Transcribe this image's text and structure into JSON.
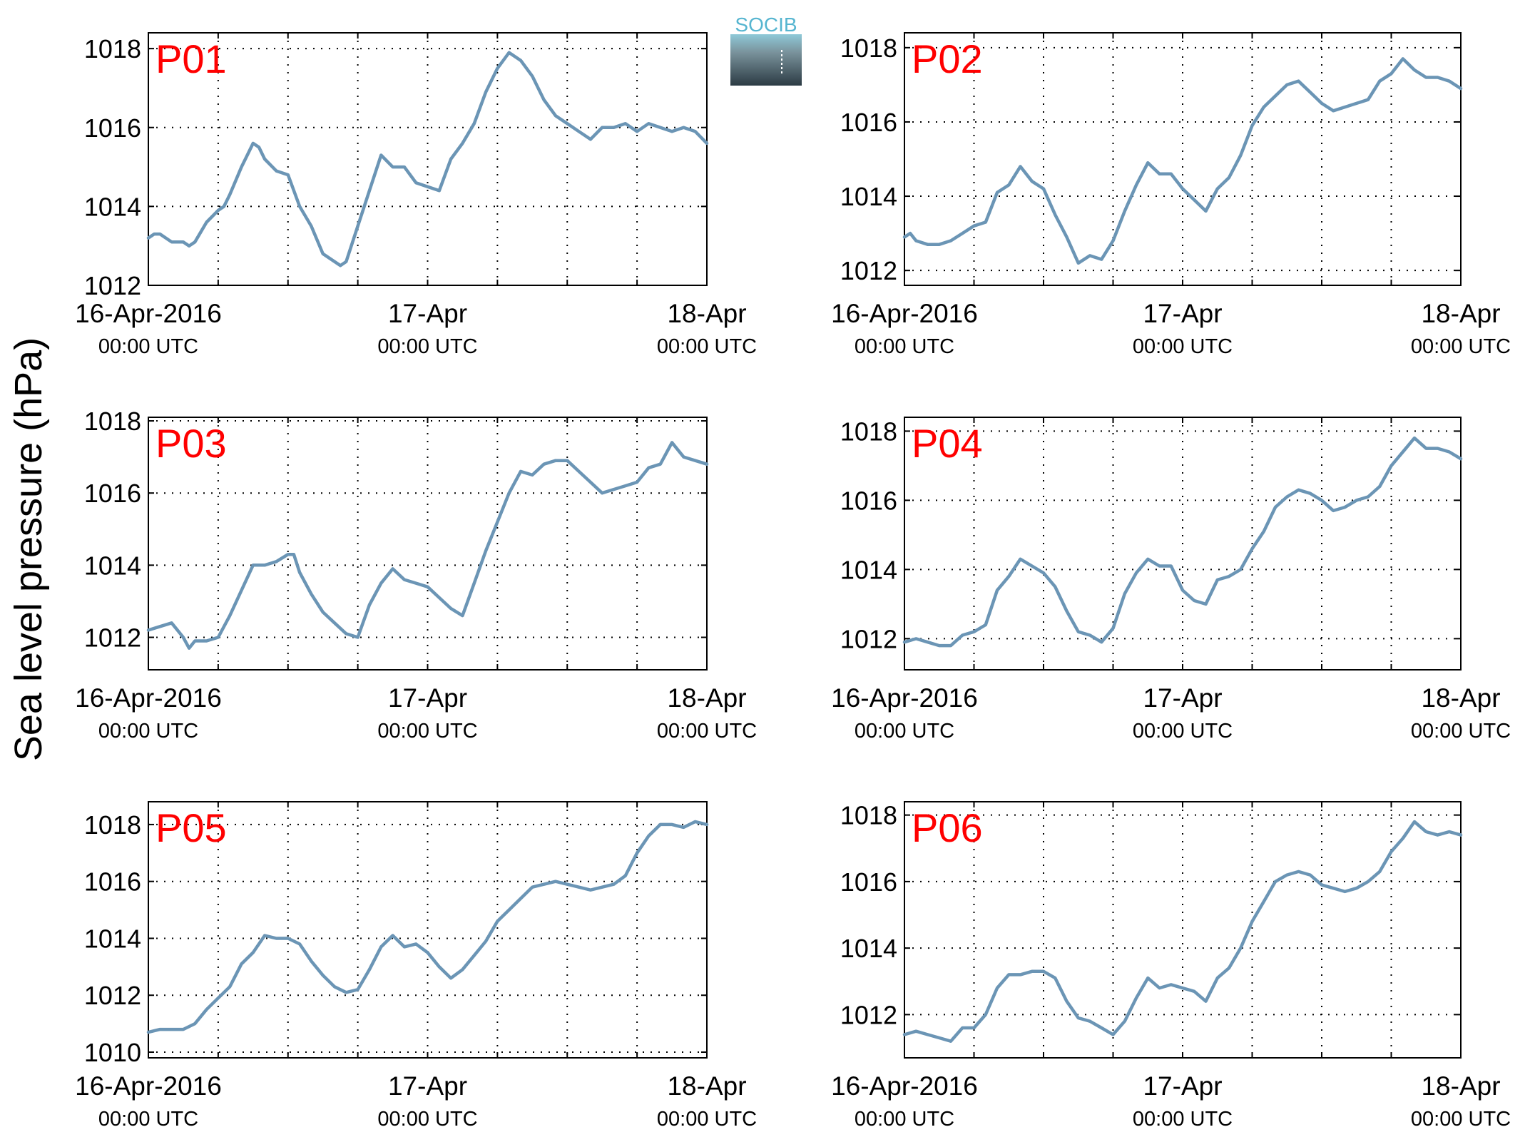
{
  "figure": {
    "ylabel": "Sea level pressure (hPa)",
    "logo_text": "SOCIB",
    "line_color": "#6b95b5",
    "label_color": "#ff0000",
    "grid_style": "dotted"
  },
  "x_ticks": [
    {
      "main": "16-Apr-2016",
      "sub": "00:00 UTC"
    },
    {
      "main": "17-Apr",
      "sub": "00:00 UTC"
    },
    {
      "main": "18-Apr",
      "sub": "00:00 UTC"
    }
  ],
  "chart_data": [
    {
      "type": "line",
      "title": "P01",
      "ylim": [
        1012,
        1018.4
      ],
      "yticks": [
        1012,
        1014,
        1016,
        1018
      ],
      "xlim": [
        0,
        48
      ],
      "xgrid_every_hours": 6,
      "grid": true,
      "points": [
        [
          0,
          1013.2
        ],
        [
          0.5,
          1013.3
        ],
        [
          1,
          1013.3
        ],
        [
          2,
          1013.1
        ],
        [
          3,
          1013.1
        ],
        [
          3.5,
          1013.0
        ],
        [
          4,
          1013.1
        ],
        [
          5,
          1013.6
        ],
        [
          6,
          1013.9
        ],
        [
          6.5,
          1014.0
        ],
        [
          7,
          1014.3
        ],
        [
          8,
          1015.0
        ],
        [
          8.5,
          1015.3
        ],
        [
          9,
          1015.6
        ],
        [
          9.5,
          1015.5
        ],
        [
          10,
          1015.2
        ],
        [
          11,
          1014.9
        ],
        [
          12,
          1014.8
        ],
        [
          13,
          1014.0
        ],
        [
          14,
          1013.5
        ],
        [
          15,
          1012.8
        ],
        [
          16,
          1012.6
        ],
        [
          16.5,
          1012.5
        ],
        [
          17,
          1012.6
        ],
        [
          18,
          1013.5
        ],
        [
          19,
          1014.4
        ],
        [
          20,
          1015.3
        ],
        [
          21,
          1015.0
        ],
        [
          22,
          1015.0
        ],
        [
          23,
          1014.6
        ],
        [
          24,
          1014.5
        ],
        [
          25,
          1014.4
        ],
        [
          26,
          1015.2
        ],
        [
          27,
          1015.6
        ],
        [
          28,
          1016.1
        ],
        [
          29,
          1016.9
        ],
        [
          30,
          1017.5
        ],
        [
          31,
          1017.9
        ],
        [
          32,
          1017.7
        ],
        [
          33,
          1017.3
        ],
        [
          34,
          1016.7
        ],
        [
          35,
          1016.3
        ],
        [
          36,
          1016.1
        ],
        [
          37,
          1015.9
        ],
        [
          38,
          1015.7
        ],
        [
          39,
          1016.0
        ],
        [
          40,
          1016.0
        ],
        [
          41,
          1016.1
        ],
        [
          42,
          1015.9
        ],
        [
          43,
          1016.1
        ],
        [
          44,
          1016.0
        ],
        [
          45,
          1015.9
        ],
        [
          46,
          1016.0
        ],
        [
          47,
          1015.9
        ],
        [
          48,
          1015.6
        ]
      ]
    },
    {
      "type": "line",
      "title": "P02",
      "ylim": [
        1011.6,
        1018.4
      ],
      "yticks": [
        1012,
        1014,
        1016,
        1018
      ],
      "xlim": [
        0,
        48
      ],
      "xgrid_every_hours": 6,
      "grid": true,
      "points": [
        [
          0,
          1012.9
        ],
        [
          0.5,
          1013.0
        ],
        [
          1,
          1012.8
        ],
        [
          2,
          1012.7
        ],
        [
          3,
          1012.7
        ],
        [
          4,
          1012.8
        ],
        [
          5,
          1013.0
        ],
        [
          6,
          1013.2
        ],
        [
          7,
          1013.3
        ],
        [
          8,
          1014.1
        ],
        [
          9,
          1014.3
        ],
        [
          10,
          1014.8
        ],
        [
          11,
          1014.4
        ],
        [
          12,
          1014.2
        ],
        [
          13,
          1013.5
        ],
        [
          14,
          1012.9
        ],
        [
          15,
          1012.2
        ],
        [
          16,
          1012.4
        ],
        [
          17,
          1012.3
        ],
        [
          18,
          1012.8
        ],
        [
          19,
          1013.6
        ],
        [
          20,
          1014.3
        ],
        [
          21,
          1014.9
        ],
        [
          22,
          1014.6
        ],
        [
          23,
          1014.6
        ],
        [
          24,
          1014.2
        ],
        [
          25,
          1013.9
        ],
        [
          26,
          1013.6
        ],
        [
          27,
          1014.2
        ],
        [
          28,
          1014.5
        ],
        [
          29,
          1015.1
        ],
        [
          30,
          1015.9
        ],
        [
          31,
          1016.4
        ],
        [
          32,
          1016.7
        ],
        [
          33,
          1017.0
        ],
        [
          34,
          1017.1
        ],
        [
          35,
          1016.8
        ],
        [
          36,
          1016.5
        ],
        [
          37,
          1016.3
        ],
        [
          38,
          1016.4
        ],
        [
          39,
          1016.5
        ],
        [
          40,
          1016.6
        ],
        [
          41,
          1017.1
        ],
        [
          42,
          1017.3
        ],
        [
          43,
          1017.7
        ],
        [
          44,
          1017.4
        ],
        [
          45,
          1017.2
        ],
        [
          46,
          1017.2
        ],
        [
          47,
          1017.1
        ],
        [
          48,
          1016.9
        ]
      ]
    },
    {
      "type": "line",
      "title": "P03",
      "ylim": [
        1011.1,
        1018.1
      ],
      "yticks": [
        1012,
        1014,
        1016,
        1018
      ],
      "xlim": [
        0,
        48
      ],
      "xgrid_every_hours": 6,
      "grid": true,
      "points": [
        [
          0,
          1012.2
        ],
        [
          1,
          1012.3
        ],
        [
          2,
          1012.4
        ],
        [
          3,
          1012.0
        ],
        [
          3.5,
          1011.7
        ],
        [
          4,
          1011.9
        ],
        [
          5,
          1011.9
        ],
        [
          6,
          1012.0
        ],
        [
          7,
          1012.6
        ],
        [
          8,
          1013.3
        ],
        [
          9,
          1014.0
        ],
        [
          10,
          1014.0
        ],
        [
          11,
          1014.1
        ],
        [
          12,
          1014.3
        ],
        [
          12.5,
          1014.3
        ],
        [
          13,
          1013.8
        ],
        [
          14,
          1013.2
        ],
        [
          15,
          1012.7
        ],
        [
          16,
          1012.4
        ],
        [
          17,
          1012.1
        ],
        [
          18,
          1012.0
        ],
        [
          19,
          1012.9
        ],
        [
          20,
          1013.5
        ],
        [
          21,
          1013.9
        ],
        [
          22,
          1013.6
        ],
        [
          23,
          1013.5
        ],
        [
          24,
          1013.4
        ],
        [
          25,
          1013.1
        ],
        [
          26,
          1012.8
        ],
        [
          27,
          1012.6
        ],
        [
          28,
          1013.5
        ],
        [
          29,
          1014.4
        ],
        [
          30,
          1015.2
        ],
        [
          31,
          1016.0
        ],
        [
          32,
          1016.6
        ],
        [
          33,
          1016.5
        ],
        [
          34,
          1016.8
        ],
        [
          35,
          1016.9
        ],
        [
          36,
          1016.9
        ],
        [
          37,
          1016.6
        ],
        [
          38,
          1016.3
        ],
        [
          39,
          1016.0
        ],
        [
          40,
          1016.1
        ],
        [
          41,
          1016.2
        ],
        [
          42,
          1016.3
        ],
        [
          43,
          1016.7
        ],
        [
          44,
          1016.8
        ],
        [
          45,
          1017.4
        ],
        [
          46,
          1017.0
        ],
        [
          47,
          1016.9
        ],
        [
          48,
          1016.8
        ]
      ]
    },
    {
      "type": "line",
      "title": "P04",
      "ylim": [
        1011.1,
        1018.4
      ],
      "yticks": [
        1012,
        1014,
        1016,
        1018
      ],
      "xlim": [
        0,
        48
      ],
      "xgrid_every_hours": 6,
      "grid": true,
      "points": [
        [
          0,
          1011.9
        ],
        [
          1,
          1012.0
        ],
        [
          2,
          1011.9
        ],
        [
          3,
          1011.8
        ],
        [
          4,
          1011.8
        ],
        [
          5,
          1012.1
        ],
        [
          6,
          1012.2
        ],
        [
          7,
          1012.4
        ],
        [
          8,
          1013.4
        ],
        [
          9,
          1013.8
        ],
        [
          10,
          1014.3
        ],
        [
          11,
          1014.1
        ],
        [
          12,
          1013.9
        ],
        [
          13,
          1013.5
        ],
        [
          14,
          1012.8
        ],
        [
          15,
          1012.2
        ],
        [
          16,
          1012.1
        ],
        [
          17,
          1011.9
        ],
        [
          18,
          1012.3
        ],
        [
          19,
          1013.3
        ],
        [
          20,
          1013.9
        ],
        [
          21,
          1014.3
        ],
        [
          22,
          1014.1
        ],
        [
          23,
          1014.1
        ],
        [
          24,
          1013.4
        ],
        [
          25,
          1013.1
        ],
        [
          26,
          1013.0
        ],
        [
          27,
          1013.7
        ],
        [
          28,
          1013.8
        ],
        [
          29,
          1014.0
        ],
        [
          30,
          1014.6
        ],
        [
          31,
          1015.1
        ],
        [
          32,
          1015.8
        ],
        [
          33,
          1016.1
        ],
        [
          34,
          1016.3
        ],
        [
          35,
          1016.2
        ],
        [
          36,
          1016.0
        ],
        [
          37,
          1015.7
        ],
        [
          38,
          1015.8
        ],
        [
          39,
          1016.0
        ],
        [
          40,
          1016.1
        ],
        [
          41,
          1016.4
        ],
        [
          42,
          1017.0
        ],
        [
          43,
          1017.4
        ],
        [
          44,
          1017.8
        ],
        [
          45,
          1017.5
        ],
        [
          46,
          1017.5
        ],
        [
          47,
          1017.4
        ],
        [
          48,
          1017.2
        ]
      ]
    },
    {
      "type": "line",
      "title": "P05",
      "ylim": [
        1009.8,
        1018.8
      ],
      "yticks": [
        1010,
        1012,
        1014,
        1016,
        1018
      ],
      "xlim": [
        0,
        48
      ],
      "xgrid_every_hours": 6,
      "grid": true,
      "points": [
        [
          0,
          1010.7
        ],
        [
          1,
          1010.8
        ],
        [
          2,
          1010.8
        ],
        [
          3,
          1010.8
        ],
        [
          4,
          1011.0
        ],
        [
          5,
          1011.5
        ],
        [
          6,
          1011.9
        ],
        [
          7,
          1012.3
        ],
        [
          8,
          1013.1
        ],
        [
          9,
          1013.5
        ],
        [
          10,
          1014.1
        ],
        [
          11,
          1014.0
        ],
        [
          12,
          1014.0
        ],
        [
          13,
          1013.8
        ],
        [
          14,
          1013.2
        ],
        [
          15,
          1012.7
        ],
        [
          16,
          1012.3
        ],
        [
          17,
          1012.1
        ],
        [
          18,
          1012.2
        ],
        [
          19,
          1012.9
        ],
        [
          20,
          1013.7
        ],
        [
          21,
          1014.1
        ],
        [
          22,
          1013.7
        ],
        [
          23,
          1013.8
        ],
        [
          24,
          1013.5
        ],
        [
          25,
          1013.0
        ],
        [
          26,
          1012.6
        ],
        [
          27,
          1012.9
        ],
        [
          28,
          1013.4
        ],
        [
          29,
          1013.9
        ],
        [
          30,
          1014.6
        ],
        [
          31,
          1015.0
        ],
        [
          32,
          1015.4
        ],
        [
          33,
          1015.8
        ],
        [
          34,
          1015.9
        ],
        [
          35,
          1016.0
        ],
        [
          36,
          1015.9
        ],
        [
          37,
          1015.8
        ],
        [
          38,
          1015.7
        ],
        [
          39,
          1015.8
        ],
        [
          40,
          1015.9
        ],
        [
          41,
          1016.2
        ],
        [
          42,
          1017.0
        ],
        [
          43,
          1017.6
        ],
        [
          44,
          1018.0
        ],
        [
          45,
          1018.0
        ],
        [
          46,
          1017.9
        ],
        [
          47,
          1018.1
        ],
        [
          48,
          1018.0
        ]
      ]
    },
    {
      "type": "line",
      "title": "P06",
      "ylim": [
        1010.7,
        1018.4
      ],
      "yticks": [
        1012,
        1014,
        1016,
        1018
      ],
      "xlim": [
        0,
        48
      ],
      "xgrid_every_hours": 6,
      "grid": true,
      "points": [
        [
          0,
          1011.4
        ],
        [
          1,
          1011.5
        ],
        [
          2,
          1011.4
        ],
        [
          3,
          1011.3
        ],
        [
          4,
          1011.2
        ],
        [
          5,
          1011.6
        ],
        [
          6,
          1011.6
        ],
        [
          7,
          1012.0
        ],
        [
          8,
          1012.8
        ],
        [
          9,
          1013.2
        ],
        [
          10,
          1013.2
        ],
        [
          11,
          1013.3
        ],
        [
          12,
          1013.3
        ],
        [
          13,
          1013.1
        ],
        [
          14,
          1012.4
        ],
        [
          15,
          1011.9
        ],
        [
          16,
          1011.8
        ],
        [
          17,
          1011.6
        ],
        [
          18,
          1011.4
        ],
        [
          19,
          1011.8
        ],
        [
          20,
          1012.5
        ],
        [
          21,
          1013.1
        ],
        [
          22,
          1012.8
        ],
        [
          23,
          1012.9
        ],
        [
          24,
          1012.8
        ],
        [
          25,
          1012.7
        ],
        [
          26,
          1012.4
        ],
        [
          27,
          1013.1
        ],
        [
          28,
          1013.4
        ],
        [
          29,
          1014.0
        ],
        [
          30,
          1014.8
        ],
        [
          31,
          1015.4
        ],
        [
          32,
          1016.0
        ],
        [
          33,
          1016.2
        ],
        [
          34,
          1016.3
        ],
        [
          35,
          1016.2
        ],
        [
          36,
          1015.9
        ],
        [
          37,
          1015.8
        ],
        [
          38,
          1015.7
        ],
        [
          39,
          1015.8
        ],
        [
          40,
          1016.0
        ],
        [
          41,
          1016.3
        ],
        [
          42,
          1016.9
        ],
        [
          43,
          1017.3
        ],
        [
          44,
          1017.8
        ],
        [
          45,
          1017.5
        ],
        [
          46,
          1017.4
        ],
        [
          47,
          1017.5
        ],
        [
          48,
          1017.4
        ]
      ]
    }
  ]
}
